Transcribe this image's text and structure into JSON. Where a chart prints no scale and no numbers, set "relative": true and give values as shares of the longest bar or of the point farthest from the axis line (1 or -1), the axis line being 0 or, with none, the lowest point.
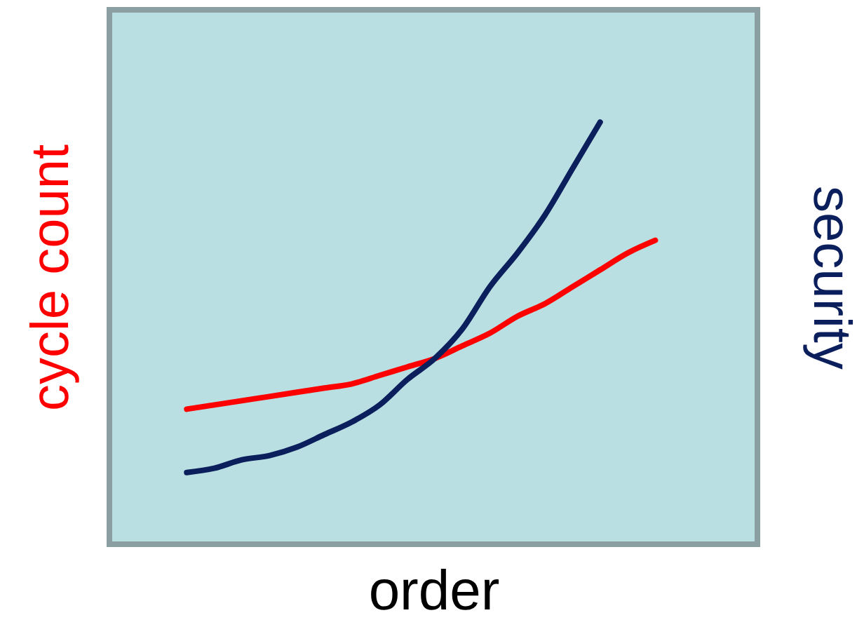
{
  "chart_data": {
    "type": "line",
    "relative": true,
    "xlabel": "order",
    "ylabel": "cycle count",
    "y2label": "security",
    "grid": false,
    "categories": [
      null,
      null,
      null,
      null,
      null,
      null,
      null,
      null,
      null,
      null,
      null,
      null,
      null,
      null,
      null,
      null,
      null,
      null
    ],
    "series": [
      {
        "color": "#ff0000",
        "values": [
          0.32,
          0.33,
          0.34,
          0.35,
          0.36,
          0.37,
          0.38,
          0.4,
          0.42,
          0.44,
          0.47,
          0.5,
          0.54,
          0.57,
          0.61,
          0.65,
          0.69,
          0.72
        ]
      },
      {
        "color": "#0b1f5c",
        "values": [
          0.17,
          0.18,
          0.2,
          0.21,
          0.23,
          0.26,
          0.29,
          0.33,
          0.39,
          0.44,
          0.51,
          0.61,
          0.69,
          0.78,
          0.89,
          1,
          null,
          null
        ]
      }
    ]
  }
}
